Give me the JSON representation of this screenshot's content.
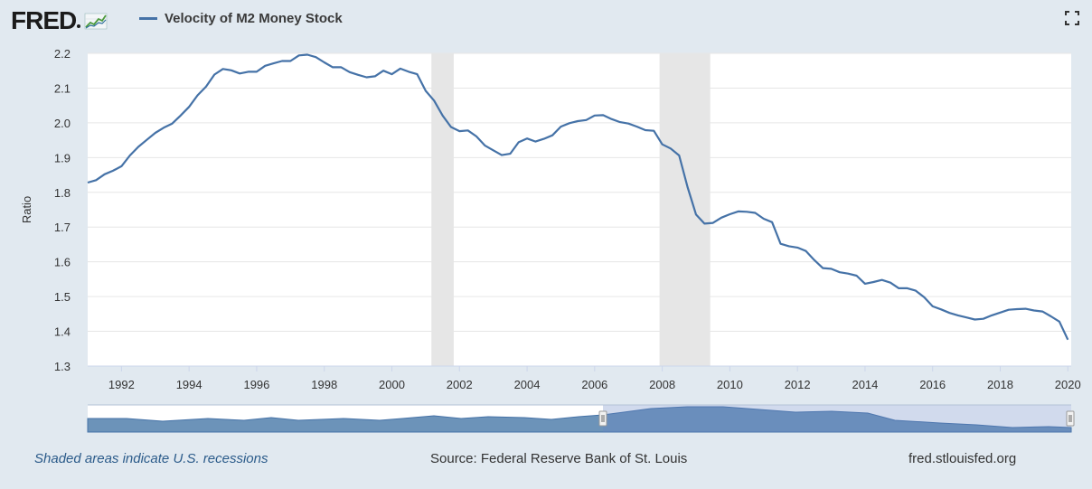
{
  "header": {
    "logo_text": "FRED",
    "series_label": "Velocity of M2 Money Stock",
    "series_color": "#4572a7"
  },
  "icons": [
    "fred-graph-icon",
    "fullscreen-icon"
  ],
  "footer": {
    "recession_note": "Shaded areas indicate U.S. recessions",
    "source": "Source: Federal Reserve Bank of St. Louis",
    "site": "fred.stlouisfed.org"
  },
  "chart_data": {
    "type": "line",
    "title": "",
    "ylabel": "Ratio",
    "xlim": [
      1991.0,
      2020.1
    ],
    "ylim": [
      1.3,
      2.2
    ],
    "y_ticks": [
      "2.2",
      "2.1",
      "2.0",
      "1.9",
      "1.8",
      "1.7",
      "1.6",
      "1.5",
      "1.4",
      "1.3"
    ],
    "x_ticks": [
      "1992",
      "1994",
      "1996",
      "1998",
      "2000",
      "2002",
      "2004",
      "2006",
      "2008",
      "2010",
      "2012",
      "2014",
      "2016",
      "2018",
      "2020"
    ],
    "grid": true,
    "recessions": [
      [
        2001.17,
        2001.83
      ],
      [
        2007.92,
        2009.42
      ]
    ],
    "series": [
      {
        "name": "Velocity of M2 Money Stock",
        "color": "#4572a7",
        "x": [
          1991.0,
          1991.25,
          1991.5,
          1991.75,
          1992.0,
          1992.25,
          1992.5,
          1992.75,
          1993.0,
          1993.25,
          1993.5,
          1993.75,
          1994.0,
          1994.25,
          1994.5,
          1994.75,
          1995.0,
          1995.25,
          1995.5,
          1995.75,
          1996.0,
          1996.25,
          1996.5,
          1996.75,
          1997.0,
          1997.25,
          1997.5,
          1997.75,
          1998.0,
          1998.25,
          1998.5,
          1998.75,
          1999.0,
          1999.25,
          1999.5,
          1999.75,
          2000.0,
          2000.25,
          2000.5,
          2000.75,
          2001.0,
          2001.25,
          2001.5,
          2001.75,
          2002.0,
          2002.25,
          2002.5,
          2002.75,
          2003.0,
          2003.25,
          2003.5,
          2003.75,
          2004.0,
          2004.25,
          2004.5,
          2004.75,
          2005.0,
          2005.25,
          2005.5,
          2005.75,
          2006.0,
          2006.25,
          2006.5,
          2006.75,
          2007.0,
          2007.25,
          2007.5,
          2007.75,
          2008.0,
          2008.25,
          2008.5,
          2008.75,
          2009.0,
          2009.25,
          2009.5,
          2009.75,
          2010.0,
          2010.25,
          2010.5,
          2010.75,
          2011.0,
          2011.25,
          2011.5,
          2011.75,
          2012.0,
          2012.25,
          2012.5,
          2012.75,
          2013.0,
          2013.25,
          2013.5,
          2013.75,
          2014.0,
          2014.25,
          2014.5,
          2014.75,
          2015.0,
          2015.25,
          2015.5,
          2015.75,
          2016.0,
          2016.25,
          2016.5,
          2016.75,
          2017.0,
          2017.25,
          2017.5,
          2017.75,
          2018.0,
          2018.25,
          2018.5,
          2018.75,
          2019.0,
          2019.25,
          2019.5,
          2019.75,
          2020.0
        ],
        "y": [
          1.828,
          1.835,
          1.852,
          1.862,
          1.875,
          1.906,
          1.931,
          1.951,
          1.971,
          1.986,
          1.998,
          2.021,
          2.046,
          2.079,
          2.104,
          2.139,
          2.155,
          2.151,
          2.142,
          2.147,
          2.147,
          2.164,
          2.171,
          2.178,
          2.178,
          2.194,
          2.196,
          2.189,
          2.174,
          2.16,
          2.16,
          2.146,
          2.138,
          2.131,
          2.134,
          2.15,
          2.14,
          2.156,
          2.147,
          2.14,
          2.092,
          2.064,
          2.021,
          1.988,
          1.976,
          1.978,
          1.961,
          1.935,
          1.921,
          1.907,
          1.911,
          1.944,
          1.955,
          1.946,
          1.954,
          1.964,
          1.989,
          1.999,
          2.005,
          2.008,
          2.021,
          2.022,
          2.011,
          2.002,
          1.998,
          1.989,
          1.979,
          1.977,
          1.938,
          1.926,
          1.906,
          1.815,
          1.736,
          1.71,
          1.712,
          1.727,
          1.737,
          1.745,
          1.744,
          1.741,
          1.724,
          1.714,
          1.652,
          1.645,
          1.641,
          1.631,
          1.605,
          1.582,
          1.58,
          1.57,
          1.566,
          1.56,
          1.537,
          1.542,
          1.548,
          1.54,
          1.524,
          1.524,
          1.517,
          1.498,
          1.472,
          1.463,
          1.453,
          1.446,
          1.44,
          1.434,
          1.436,
          1.446,
          1.454,
          1.462,
          1.464,
          1.465,
          1.46,
          1.457,
          1.443,
          1.428,
          1.376
        ]
      }
    ]
  }
}
